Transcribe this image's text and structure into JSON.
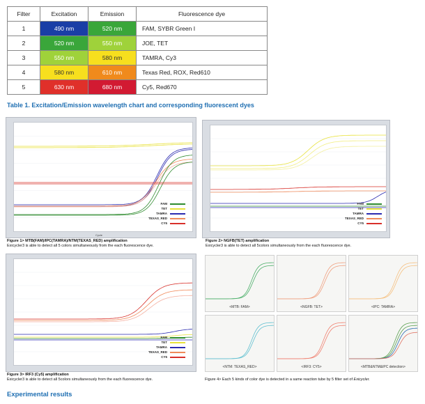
{
  "table": {
    "headers": [
      "Filter",
      "Excitation",
      "Emission",
      "Fluorescence dye"
    ],
    "rows": [
      {
        "filter": "1",
        "excitation": "490 nm",
        "emission": "520 nm",
        "dye": "FAM, SYBR Green I",
        "ex_color": "#1a3ea6",
        "em_color": "#3aa63a",
        "ex_text": "#ffffff",
        "em_text": "#ffffff"
      },
      {
        "filter": "2",
        "excitation": "520 nm",
        "emission": "550 nm",
        "dye": "JOE, TET",
        "ex_color": "#3aa63a",
        "em_color": "#9fd23a",
        "ex_text": "#ffffff",
        "em_text": "#ffffff"
      },
      {
        "filter": "3",
        "excitation": "550 nm",
        "emission": "580 nm",
        "dye": "TAMRA, Cy3",
        "ex_color": "#9fd23a",
        "em_color": "#f7df1e",
        "ex_text": "#ffffff",
        "em_text": "#333333"
      },
      {
        "filter": "4",
        "excitation": "580 nm",
        "emission": "610 nm",
        "dye": "Texas Red, ROX, Red610",
        "ex_color": "#f7df1e",
        "em_color": "#f08a1c",
        "ex_text": "#333333",
        "em_text": "#ffffff"
      },
      {
        "filter": "5",
        "excitation": "630 nm",
        "emission": "680 nm",
        "dye": "Cy5, Red670",
        "ex_color": "#e0302a",
        "em_color": "#d21a32",
        "ex_text": "#ffffff",
        "em_text": "#ffffff"
      }
    ]
  },
  "caption_table": "Table 1. Excitation/Emission wavelength chart and corresponding fluorescent dyes",
  "legend_five": [
    {
      "name": "FAM",
      "color": "#2e8b2e"
    },
    {
      "name": "TET",
      "color": "#e8e23a"
    },
    {
      "name": "TAMRA",
      "color": "#2a2ab0"
    },
    {
      "name": "TEXAS_RED",
      "color": "#f08a5a"
    },
    {
      "name": "CY5",
      "color": "#d8302a"
    }
  ],
  "fig1": {
    "title": "Figure 1> MTB(FAM)/IPC(TAMRA)/NTM(TEXAS_RED) amplification",
    "desc": "Exicycler3 is able to detect all 5 colors simultaneously from the each fluorescence dye."
  },
  "fig2": {
    "title": "Figure 2> NGFB(TET) amplification",
    "desc": "Exicycler3 is able to detect all 5colors simultaneously from the each fluorescence dye."
  },
  "fig3": {
    "title": "Figure 3> IRF3 (Cy5) amplification",
    "desc": "Exicycler3 is able to detect all 5colors simultaneously from the each fluorescence dye."
  },
  "fig4": {
    "prefix": "Figure 4> Each 5 kinds of color dye is detected in a same reaction tube by 5 filter set of ",
    "emph": "Exicycler."
  },
  "minis": [
    {
      "label": "<MTB: FAM>",
      "color": "#4caf6a"
    },
    {
      "label": "<NGFB: TET>",
      "color": "#f0a080"
    },
    {
      "label": "<IPC: TAMRA>",
      "color": "#f5c080"
    },
    {
      "label": "<NTM: TEXAS_RED>",
      "color": "#60c0d0"
    },
    {
      "label": "<IRF3: CY5>",
      "color": "#f08070"
    },
    {
      "label": "<MTB&NTM&IPC detection>",
      "color": "#5aa050"
    }
  ],
  "results_heading": "Experimental results",
  "axis_label": "Cycle"
}
